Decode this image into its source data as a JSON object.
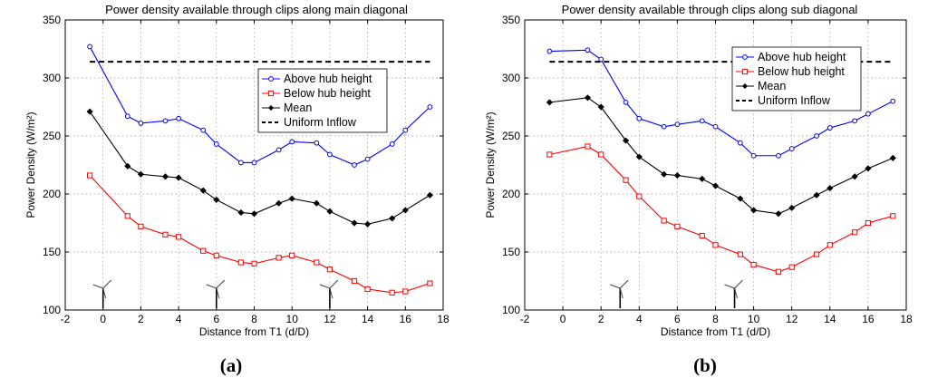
{
  "chart_data": [
    {
      "type": "line",
      "panel_label": "(a)",
      "title": "Power density available through clips along main diagonal",
      "xlabel": "Distance from T1 (d/D)",
      "ylabel": "Power Density (W/m²)",
      "xlim": [
        -2,
        18
      ],
      "ylim": [
        100,
        350
      ],
      "xticks": [
        -2,
        0,
        2,
        4,
        6,
        8,
        10,
        12,
        14,
        16,
        18
      ],
      "yticks": [
        100,
        150,
        200,
        250,
        300,
        350
      ],
      "grid": true,
      "legend_position": "center-right",
      "turbine_positions": [
        0,
        6,
        12
      ],
      "series": [
        {
          "name": "Above hub height",
          "color": "#0000ff",
          "marker": "circle",
          "x": [
            -0.7,
            1.3,
            2.0,
            3.3,
            4.0,
            5.3,
            6.0,
            7.3,
            8.0,
            9.3,
            10.0,
            11.3,
            12.0,
            13.3,
            14.0,
            15.3,
            16.0,
            17.3
          ],
          "values": [
            327,
            267,
            261,
            263,
            265,
            255,
            243,
            227,
            227,
            238,
            245,
            244,
            234,
            225,
            230,
            243,
            255,
            275
          ]
        },
        {
          "name": "Below hub height",
          "color": "#ff0000",
          "marker": "square",
          "x": [
            -0.7,
            1.3,
            2.0,
            3.3,
            4.0,
            5.3,
            6.0,
            7.3,
            8.0,
            9.3,
            10.0,
            11.3,
            12.0,
            13.3,
            14.0,
            15.3,
            16.0,
            17.3
          ],
          "values": [
            216,
            181,
            172,
            165,
            163,
            151,
            147,
            141,
            140,
            145,
            147,
            141,
            135,
            125,
            118,
            115,
            116,
            123
          ]
        },
        {
          "name": "Mean",
          "color": "#000000",
          "marker": "diamond",
          "x": [
            -0.7,
            1.3,
            2.0,
            3.3,
            4.0,
            5.3,
            6.0,
            7.3,
            8.0,
            9.3,
            10.0,
            11.3,
            12.0,
            13.3,
            14.0,
            15.3,
            16.0,
            17.3
          ],
          "values": [
            271,
            224,
            217,
            215,
            214,
            203,
            195,
            184,
            183,
            192,
            196,
            192,
            185,
            175,
            174,
            179,
            186,
            199
          ]
        },
        {
          "name": "Uniform Inflow",
          "color": "#000000",
          "marker": "none",
          "dashed": true,
          "x": [
            -0.7,
            17.3
          ],
          "values": [
            314,
            314
          ]
        }
      ]
    },
    {
      "type": "line",
      "panel_label": "(b)",
      "title": "Power density available  through clips along sub diagonal",
      "xlabel": "Distance from T1 (d/D)",
      "ylabel": "Power Density (W/m²)",
      "xlim": [
        -2,
        18
      ],
      "ylim": [
        100,
        350
      ],
      "xticks": [
        -2,
        0,
        2,
        4,
        6,
        8,
        10,
        12,
        14,
        16,
        18
      ],
      "yticks": [
        100,
        150,
        200,
        250,
        300,
        350
      ],
      "grid": true,
      "legend_position": "top-center",
      "turbine_positions": [
        3,
        9
      ],
      "series": [
        {
          "name": "Above hub height",
          "color": "#0000ff",
          "marker": "circle",
          "x": [
            -0.7,
            1.3,
            2.0,
            3.3,
            4.0,
            5.3,
            6.0,
            7.3,
            8.0,
            9.3,
            10.0,
            11.3,
            12.0,
            13.3,
            14.0,
            15.3,
            16.0,
            17.3
          ],
          "values": [
            323,
            324,
            316,
            279,
            265,
            258,
            260,
            263,
            258,
            244,
            233,
            233,
            239,
            250,
            257,
            263,
            269,
            280
          ]
        },
        {
          "name": "Below hub height",
          "color": "#ff0000",
          "marker": "square",
          "x": [
            -0.7,
            1.3,
            2.0,
            3.3,
            4.0,
            5.3,
            6.0,
            7.3,
            8.0,
            9.3,
            10.0,
            11.3,
            12.0,
            13.3,
            14.0,
            15.3,
            16.0,
            17.3
          ],
          "values": [
            234,
            241,
            234,
            212,
            198,
            177,
            172,
            164,
            156,
            148,
            139,
            133,
            137,
            148,
            156,
            167,
            175,
            181
          ]
        },
        {
          "name": "Mean",
          "color": "#000000",
          "marker": "diamond",
          "x": [
            -0.7,
            1.3,
            2.0,
            3.3,
            4.0,
            5.3,
            6.0,
            7.3,
            8.0,
            9.3,
            10.0,
            11.3,
            12.0,
            13.3,
            14.0,
            15.3,
            16.0,
            17.3
          ],
          "values": [
            279,
            283,
            275,
            246,
            232,
            217,
            216,
            213,
            207,
            196,
            186,
            183,
            188,
            199,
            205,
            215,
            222,
            231
          ]
        },
        {
          "name": "Uniform Inflow",
          "color": "#000000",
          "marker": "none",
          "dashed": true,
          "x": [
            -0.7,
            17.3
          ],
          "values": [
            314,
            314
          ]
        }
      ]
    }
  ]
}
